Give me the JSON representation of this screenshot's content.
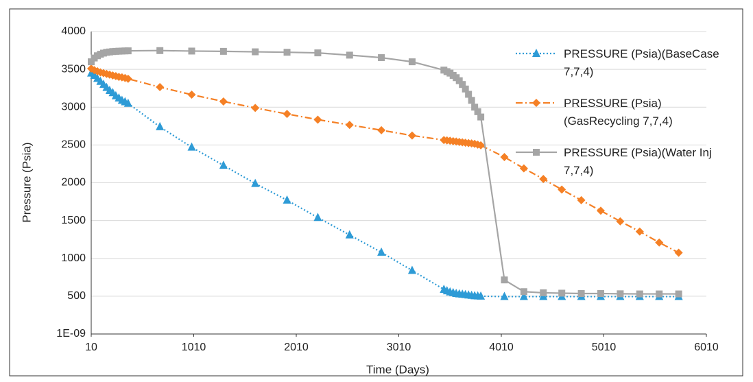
{
  "chart_data": {
    "type": "line",
    "x_label": "Time (Days)",
    "y_label": "Pressure (Psia)",
    "x": [
      10,
      40,
      70,
      100,
      130,
      160,
      190,
      220,
      250,
      280,
      310,
      340,
      370,
      680,
      990,
      1300,
      1610,
      1920,
      2220,
      2530,
      2840,
      3140,
      3450,
      3480,
      3510,
      3540,
      3570,
      3600,
      3630,
      3660,
      3690,
      3720,
      3750,
      3780,
      3810,
      4040,
      4230,
      4420,
      4600,
      4790,
      4980,
      5170,
      5360,
      5550,
      5740
    ],
    "series": [
      {
        "name": "PRESSURE (Psia)(BaseCase 7,7,4)",
        "color": "#2e9bd6",
        "marker": "triangle",
        "dash": "dot",
        "values": [
          3450,
          3420,
          3380,
          3340,
          3300,
          3260,
          3220,
          3190,
          3150,
          3120,
          3090,
          3070,
          3050,
          2740,
          2470,
          2230,
          1990,
          1770,
          1540,
          1310,
          1080,
          840,
          590,
          570,
          555,
          545,
          535,
          530,
          525,
          520,
          515,
          510,
          505,
          502,
          500,
          495,
          495,
          495,
          495,
          495,
          495,
          495,
          495,
          495,
          495
        ]
      },
      {
        "name": "PRESSURE (Psia)(GasRecycling 7,7,4)",
        "color": "#f58025",
        "marker": "diamond",
        "dash": "dashdot",
        "values": [
          3510,
          3490,
          3475,
          3460,
          3450,
          3440,
          3430,
          3420,
          3410,
          3400,
          3395,
          3385,
          3375,
          3265,
          3165,
          3075,
          2990,
          2910,
          2835,
          2765,
          2695,
          2625,
          2565,
          2560,
          2555,
          2550,
          2545,
          2540,
          2535,
          2530,
          2525,
          2520,
          2515,
          2505,
          2495,
          2340,
          2190,
          2050,
          1910,
          1770,
          1630,
          1490,
          1355,
          1210,
          1075
        ]
      },
      {
        "name": "PRESSURE (Psia)(Water Inj 7,7,4)",
        "color": "#a5a5a5",
        "marker": "square",
        "dash": "solid",
        "values": [
          3600,
          3650,
          3680,
          3700,
          3715,
          3725,
          3730,
          3735,
          3738,
          3740,
          3742,
          3744,
          3745,
          3748,
          3742,
          3738,
          3732,
          3726,
          3718,
          3688,
          3655,
          3600,
          3490,
          3470,
          3450,
          3420,
          3390,
          3350,
          3300,
          3240,
          3170,
          3090,
          3000,
          2940,
          2870,
          715,
          560,
          545,
          540,
          535,
          535,
          532,
          530,
          530,
          530
        ]
      }
    ],
    "xlim": [
      10,
      6010
    ],
    "xticks": [
      10,
      1010,
      2010,
      3010,
      4010,
      5010,
      6010
    ],
    "ylim": [
      1e-09,
      4000
    ],
    "yticks": [
      {
        "value": 1e-09,
        "label": "1E-09"
      },
      500,
      1000,
      1500,
      2000,
      2500,
      3000,
      3500,
      4000
    ],
    "grid": true,
    "legend": "right"
  }
}
